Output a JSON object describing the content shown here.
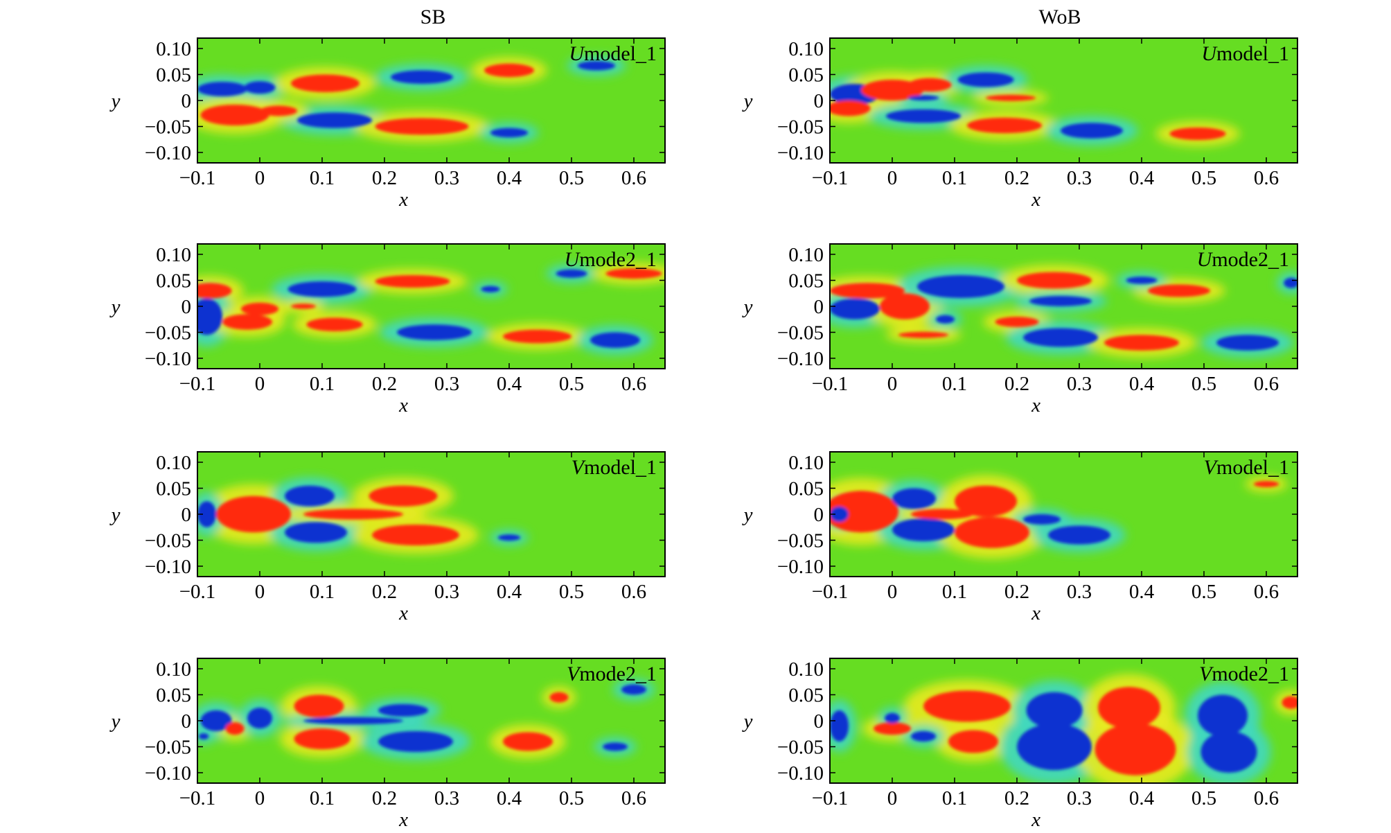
{
  "column_titles": [
    "SB",
    "WoB"
  ],
  "colors": {
    "background_field": "#66dd22",
    "positive": "#ff2a10",
    "negative": "#1030d0",
    "weak_positive": "#e8ea20",
    "weak_negative": "#40d8c0"
  },
  "chart_data": [
    {
      "type": "heatmap",
      "column": "SB",
      "row": 1,
      "label_symbol": "U",
      "label_rest": "model_1",
      "xlabel": "x",
      "ylabel": "y",
      "xlim": [
        -0.1,
        0.65
      ],
      "ylim": [
        -0.12,
        0.12
      ],
      "xticks": [
        -0.1,
        0,
        0.1,
        0.2,
        0.3,
        0.4,
        0.5,
        0.6
      ],
      "xtick_labels": [
        "−0.1",
        "0",
        "0.1",
        "0.2",
        "0.3",
        "0.4",
        "0.5",
        "0.6"
      ],
      "yticks": [
        0.1,
        0.05,
        0,
        -0.05,
        -0.1
      ],
      "ytick_labels": [
        "0.10",
        "0.05",
        "0",
        "−0.05",
        "−0.10"
      ],
      "structures": [
        {
          "sign": "neg",
          "x": -0.06,
          "y": 0.022,
          "rx": 0.04,
          "ry": 0.014
        },
        {
          "sign": "neg",
          "x": 0.0,
          "y": 0.025,
          "rx": 0.025,
          "ry": 0.012
        },
        {
          "sign": "pos",
          "x": 0.105,
          "y": 0.033,
          "rx": 0.055,
          "ry": 0.017
        },
        {
          "sign": "neg",
          "x": 0.26,
          "y": 0.045,
          "rx": 0.05,
          "ry": 0.013
        },
        {
          "sign": "pos",
          "x": 0.4,
          "y": 0.058,
          "rx": 0.04,
          "ry": 0.013
        },
        {
          "sign": "neg",
          "x": 0.54,
          "y": 0.067,
          "rx": 0.03,
          "ry": 0.009
        },
        {
          "sign": "pos",
          "x": -0.04,
          "y": -0.028,
          "rx": 0.055,
          "ry": 0.02
        },
        {
          "sign": "neg",
          "x": 0.12,
          "y": -0.038,
          "rx": 0.06,
          "ry": 0.015
        },
        {
          "sign": "pos",
          "x": 0.26,
          "y": -0.05,
          "rx": 0.075,
          "ry": 0.016
        },
        {
          "sign": "neg",
          "x": 0.4,
          "y": -0.062,
          "rx": 0.03,
          "ry": 0.009
        },
        {
          "sign": "pos",
          "x": 0.03,
          "y": -0.02,
          "rx": 0.03,
          "ry": 0.01
        }
      ]
    },
    {
      "type": "heatmap",
      "column": "WoB",
      "row": 1,
      "label_symbol": "U",
      "label_rest": "model_1",
      "xlabel": "x",
      "ylabel": "y",
      "xlim": [
        -0.1,
        0.65
      ],
      "ylim": [
        -0.12,
        0.12
      ],
      "xticks": [
        -0.1,
        0,
        0.1,
        0.2,
        0.3,
        0.4,
        0.5,
        0.6
      ],
      "xtick_labels": [
        "−0.1",
        "0",
        "0.1",
        "0.2",
        "0.3",
        "0.4",
        "0.5",
        "0.6"
      ],
      "yticks": [
        0.1,
        0.05,
        0,
        -0.05,
        -0.1
      ],
      "ytick_labels": [
        "0.10",
        "0.05",
        "0",
        "−0.05",
        "−0.10"
      ],
      "structures": [
        {
          "sign": "neg",
          "x": -0.06,
          "y": 0.012,
          "rx": 0.04,
          "ry": 0.02
        },
        {
          "sign": "pos",
          "x": 0.0,
          "y": 0.02,
          "rx": 0.05,
          "ry": 0.02
        },
        {
          "sign": "pos",
          "x": 0.06,
          "y": 0.03,
          "rx": 0.035,
          "ry": 0.013
        },
        {
          "sign": "neg",
          "x": 0.15,
          "y": 0.04,
          "rx": 0.045,
          "ry": 0.014
        },
        {
          "sign": "pos",
          "x": 0.19,
          "y": 0.005,
          "rx": 0.04,
          "ry": 0.006
        },
        {
          "sign": "pos",
          "x": -0.07,
          "y": -0.015,
          "rx": 0.035,
          "ry": 0.015
        },
        {
          "sign": "neg",
          "x": 0.05,
          "y": -0.03,
          "rx": 0.06,
          "ry": 0.013
        },
        {
          "sign": "pos",
          "x": 0.18,
          "y": -0.048,
          "rx": 0.06,
          "ry": 0.015
        },
        {
          "sign": "neg",
          "x": 0.32,
          "y": -0.058,
          "rx": 0.05,
          "ry": 0.015
        },
        {
          "sign": "pos",
          "x": 0.49,
          "y": -0.064,
          "rx": 0.045,
          "ry": 0.012
        },
        {
          "sign": "neg",
          "x": 0.05,
          "y": 0.005,
          "rx": 0.025,
          "ry": 0.005
        }
      ]
    },
    {
      "type": "heatmap",
      "column": "SB",
      "row": 2,
      "label_symbol": "U",
      "label_rest": "mode2_1",
      "xlabel": "x",
      "ylabel": "y",
      "xlim": [
        -0.1,
        0.65
      ],
      "ylim": [
        -0.12,
        0.12
      ],
      "xticks": [
        -0.1,
        0,
        0.1,
        0.2,
        0.3,
        0.4,
        0.5,
        0.6
      ],
      "xtick_labels": [
        "−0.1",
        "0",
        "0.1",
        "0.2",
        "0.3",
        "0.4",
        "0.5",
        "0.6"
      ],
      "yticks": [
        0.1,
        0.05,
        0,
        -0.05,
        -0.1
      ],
      "ytick_labels": [
        "0.10",
        "0.05",
        "0",
        "−0.05",
        "−0.10"
      ],
      "structures": [
        {
          "sign": "pos",
          "x": -0.08,
          "y": 0.03,
          "rx": 0.035,
          "ry": 0.015
        },
        {
          "sign": "neg",
          "x": 0.1,
          "y": 0.033,
          "rx": 0.055,
          "ry": 0.015
        },
        {
          "sign": "pos",
          "x": 0.245,
          "y": 0.048,
          "rx": 0.06,
          "ry": 0.012
        },
        {
          "sign": "neg",
          "x": 0.37,
          "y": 0.033,
          "rx": 0.015,
          "ry": 0.006
        },
        {
          "sign": "neg",
          "x": 0.5,
          "y": 0.063,
          "rx": 0.025,
          "ry": 0.008
        },
        {
          "sign": "pos",
          "x": 0.6,
          "y": 0.063,
          "rx": 0.045,
          "ry": 0.01
        },
        {
          "sign": "neg",
          "x": -0.085,
          "y": -0.02,
          "rx": 0.025,
          "ry": 0.035
        },
        {
          "sign": "pos",
          "x": -0.02,
          "y": -0.03,
          "rx": 0.04,
          "ry": 0.015
        },
        {
          "sign": "pos",
          "x": 0.0,
          "y": -0.005,
          "rx": 0.03,
          "ry": 0.012
        },
        {
          "sign": "pos",
          "x": 0.12,
          "y": -0.035,
          "rx": 0.045,
          "ry": 0.013
        },
        {
          "sign": "neg",
          "x": 0.28,
          "y": -0.05,
          "rx": 0.06,
          "ry": 0.015
        },
        {
          "sign": "pos",
          "x": 0.445,
          "y": -0.058,
          "rx": 0.055,
          "ry": 0.013
        },
        {
          "sign": "neg",
          "x": 0.57,
          "y": -0.065,
          "rx": 0.04,
          "ry": 0.015
        },
        {
          "sign": "pos",
          "x": 0.07,
          "y": 0.0,
          "rx": 0.02,
          "ry": 0.005
        }
      ]
    },
    {
      "type": "heatmap",
      "column": "WoB",
      "row": 2,
      "label_symbol": "U",
      "label_rest": "mode2_1",
      "xlabel": "x",
      "ylabel": "y",
      "xlim": [
        -0.1,
        0.65
      ],
      "ylim": [
        -0.12,
        0.12
      ],
      "xticks": [
        -0.1,
        0,
        0.1,
        0.2,
        0.3,
        0.4,
        0.5,
        0.6
      ],
      "xtick_labels": [
        "−0.1",
        "0",
        "0.1",
        "0.2",
        "0.3",
        "0.4",
        "0.5",
        "0.6"
      ],
      "yticks": [
        0.1,
        0.05,
        0,
        -0.05,
        -0.1
      ],
      "ytick_labels": [
        "0.10",
        "0.05",
        "0",
        "−0.05",
        "−0.10"
      ],
      "structures": [
        {
          "sign": "pos",
          "x": -0.04,
          "y": 0.03,
          "rx": 0.06,
          "ry": 0.015
        },
        {
          "sign": "neg",
          "x": -0.06,
          "y": -0.005,
          "rx": 0.04,
          "ry": 0.02
        },
        {
          "sign": "pos",
          "x": 0.02,
          "y": 0.0,
          "rx": 0.04,
          "ry": 0.025
        },
        {
          "sign": "neg",
          "x": 0.11,
          "y": 0.038,
          "rx": 0.07,
          "ry": 0.022
        },
        {
          "sign": "pos",
          "x": 0.26,
          "y": 0.05,
          "rx": 0.06,
          "ry": 0.016
        },
        {
          "sign": "neg",
          "x": 0.27,
          "y": 0.01,
          "rx": 0.05,
          "ry": 0.01
        },
        {
          "sign": "pos",
          "x": 0.46,
          "y": 0.03,
          "rx": 0.05,
          "ry": 0.012
        },
        {
          "sign": "neg",
          "x": 0.4,
          "y": 0.05,
          "rx": 0.025,
          "ry": 0.007
        },
        {
          "sign": "pos",
          "x": 0.2,
          "y": -0.03,
          "rx": 0.035,
          "ry": 0.01
        },
        {
          "sign": "neg",
          "x": 0.085,
          "y": -0.025,
          "rx": 0.015,
          "ry": 0.008
        },
        {
          "sign": "neg",
          "x": 0.27,
          "y": -0.06,
          "rx": 0.06,
          "ry": 0.018
        },
        {
          "sign": "pos",
          "x": 0.4,
          "y": -0.07,
          "rx": 0.06,
          "ry": 0.015
        },
        {
          "sign": "neg",
          "x": 0.57,
          "y": -0.07,
          "rx": 0.05,
          "ry": 0.015
        },
        {
          "sign": "pos",
          "x": 0.05,
          "y": -0.055,
          "rx": 0.04,
          "ry": 0.006
        },
        {
          "sign": "neg",
          "x": 0.64,
          "y": 0.045,
          "rx": 0.012,
          "ry": 0.01
        }
      ]
    },
    {
      "type": "heatmap",
      "column": "SB",
      "row": 3,
      "label_symbol": "V",
      "label_rest": "model_1",
      "xlabel": "x",
      "ylabel": "y",
      "xlim": [
        -0.1,
        0.65
      ],
      "ylim": [
        -0.12,
        0.12
      ],
      "xticks": [
        -0.1,
        0,
        0.1,
        0.2,
        0.3,
        0.4,
        0.5,
        0.6
      ],
      "xtick_labels": [
        "−0.1",
        "0",
        "0.1",
        "0.2",
        "0.3",
        "0.4",
        "0.5",
        "0.6"
      ],
      "yticks": [
        0.1,
        0.05,
        0,
        -0.05,
        -0.1
      ],
      "ytick_labels": [
        "0.10",
        "0.05",
        "0",
        "−0.05",
        "−0.10"
      ],
      "structures": [
        {
          "sign": "pos",
          "x": -0.01,
          "y": 0.0,
          "rx": 0.06,
          "ry": 0.035
        },
        {
          "sign": "neg",
          "x": -0.085,
          "y": 0.0,
          "rx": 0.015,
          "ry": 0.025
        },
        {
          "sign": "neg",
          "x": 0.08,
          "y": 0.035,
          "rx": 0.04,
          "ry": 0.02
        },
        {
          "sign": "neg",
          "x": 0.09,
          "y": -0.035,
          "rx": 0.05,
          "ry": 0.02
        },
        {
          "sign": "pos",
          "x": 0.23,
          "y": 0.035,
          "rx": 0.055,
          "ry": 0.02
        },
        {
          "sign": "pos",
          "x": 0.25,
          "y": -0.04,
          "rx": 0.07,
          "ry": 0.02
        },
        {
          "sign": "pos",
          "x": 0.15,
          "y": 0.0,
          "rx": 0.08,
          "ry": 0.01
        },
        {
          "sign": "neg",
          "x": 0.4,
          "y": -0.045,
          "rx": 0.018,
          "ry": 0.006
        }
      ]
    },
    {
      "type": "heatmap",
      "column": "WoB",
      "row": 3,
      "label_symbol": "V",
      "label_rest": "model_1",
      "xlabel": "x",
      "ylabel": "y",
      "xlim": [
        -0.1,
        0.65
      ],
      "ylim": [
        -0.12,
        0.12
      ],
      "xticks": [
        -0.1,
        0,
        0.1,
        0.2,
        0.3,
        0.4,
        0.5,
        0.6
      ],
      "xtick_labels": [
        "−0.1",
        "0",
        "0.1",
        "0.2",
        "0.3",
        "0.4",
        "0.5",
        "0.6"
      ],
      "yticks": [
        0.1,
        0.05,
        0,
        -0.05,
        -0.1
      ],
      "ytick_labels": [
        "0.10",
        "0.05",
        "0",
        "−0.05",
        "−0.10"
      ],
      "structures": [
        {
          "sign": "pos",
          "x": -0.05,
          "y": 0.005,
          "rx": 0.06,
          "ry": 0.04
        },
        {
          "sign": "neg",
          "x": -0.085,
          "y": 0.0,
          "rx": 0.015,
          "ry": 0.015
        },
        {
          "sign": "neg",
          "x": 0.035,
          "y": 0.03,
          "rx": 0.035,
          "ry": 0.02
        },
        {
          "sign": "neg",
          "x": 0.05,
          "y": -0.03,
          "rx": 0.05,
          "ry": 0.022
        },
        {
          "sign": "pos",
          "x": 0.15,
          "y": 0.025,
          "rx": 0.05,
          "ry": 0.03
        },
        {
          "sign": "pos",
          "x": 0.16,
          "y": -0.035,
          "rx": 0.06,
          "ry": 0.03
        },
        {
          "sign": "pos",
          "x": 0.08,
          "y": 0.0,
          "rx": 0.05,
          "ry": 0.01
        },
        {
          "sign": "neg",
          "x": 0.3,
          "y": -0.04,
          "rx": 0.05,
          "ry": 0.018
        },
        {
          "sign": "neg",
          "x": 0.24,
          "y": -0.01,
          "rx": 0.03,
          "ry": 0.01
        },
        {
          "sign": "pos",
          "x": 0.6,
          "y": 0.058,
          "rx": 0.02,
          "ry": 0.006
        }
      ]
    },
    {
      "type": "heatmap",
      "column": "SB",
      "row": 4,
      "label_symbol": "V",
      "label_rest": "mode2_1",
      "xlabel": "x",
      "ylabel": "y",
      "xlim": [
        -0.1,
        0.65
      ],
      "ylim": [
        -0.12,
        0.12
      ],
      "xticks": [
        -0.1,
        0,
        0.1,
        0.2,
        0.3,
        0.4,
        0.5,
        0.6
      ],
      "xtick_labels": [
        "−0.1",
        "0",
        "0.1",
        "0.2",
        "0.3",
        "0.4",
        "0.5",
        "0.6"
      ],
      "yticks": [
        0.1,
        0.05,
        0,
        -0.05,
        -0.1
      ],
      "ytick_labels": [
        "0.10",
        "0.05",
        "0",
        "−0.05",
        "−0.10"
      ],
      "structures": [
        {
          "sign": "neg",
          "x": -0.07,
          "y": 0.0,
          "rx": 0.025,
          "ry": 0.02
        },
        {
          "sign": "pos",
          "x": -0.04,
          "y": -0.015,
          "rx": 0.015,
          "ry": 0.012
        },
        {
          "sign": "neg",
          "x": 0.0,
          "y": 0.005,
          "rx": 0.02,
          "ry": 0.02
        },
        {
          "sign": "pos",
          "x": 0.095,
          "y": 0.028,
          "rx": 0.04,
          "ry": 0.022
        },
        {
          "sign": "pos",
          "x": 0.1,
          "y": -0.035,
          "rx": 0.045,
          "ry": 0.02
        },
        {
          "sign": "neg",
          "x": 0.15,
          "y": 0.0,
          "rx": 0.08,
          "ry": 0.007
        },
        {
          "sign": "neg",
          "x": 0.23,
          "y": 0.02,
          "rx": 0.04,
          "ry": 0.012
        },
        {
          "sign": "neg",
          "x": 0.25,
          "y": -0.04,
          "rx": 0.06,
          "ry": 0.02
        },
        {
          "sign": "pos",
          "x": 0.43,
          "y": -0.04,
          "rx": 0.04,
          "ry": 0.018
        },
        {
          "sign": "pos",
          "x": 0.48,
          "y": 0.045,
          "rx": 0.015,
          "ry": 0.01
        },
        {
          "sign": "neg",
          "x": 0.57,
          "y": -0.05,
          "rx": 0.02,
          "ry": 0.008
        },
        {
          "sign": "neg",
          "x": 0.6,
          "y": 0.06,
          "rx": 0.02,
          "ry": 0.01
        },
        {
          "sign": "neg",
          "x": -0.09,
          "y": -0.03,
          "rx": 0.008,
          "ry": 0.006
        }
      ]
    },
    {
      "type": "heatmap",
      "column": "WoB",
      "row": 4,
      "label_symbol": "V",
      "label_rest": "mode2_1",
      "xlabel": "x",
      "ylabel": "y",
      "xlim": [
        -0.1,
        0.65
      ],
      "ylim": [
        -0.12,
        0.12
      ],
      "xticks": [
        -0.1,
        0,
        0.1,
        0.2,
        0.3,
        0.4,
        0.5,
        0.6
      ],
      "xtick_labels": [
        "−0.1",
        "0",
        "0.1",
        "0.2",
        "0.3",
        "0.4",
        "0.5",
        "0.6"
      ],
      "yticks": [
        0.1,
        0.05,
        0,
        -0.05,
        -0.1
      ],
      "ytick_labels": [
        "0.10",
        "0.05",
        "0",
        "−0.05",
        "−0.10"
      ],
      "structures": [
        {
          "sign": "neg",
          "x": -0.085,
          "y": -0.01,
          "rx": 0.015,
          "ry": 0.03
        },
        {
          "sign": "pos",
          "x": 0.0,
          "y": -0.015,
          "rx": 0.03,
          "ry": 0.012
        },
        {
          "sign": "neg",
          "x": 0.0,
          "y": 0.005,
          "rx": 0.012,
          "ry": 0.01
        },
        {
          "sign": "pos",
          "x": 0.12,
          "y": 0.028,
          "rx": 0.07,
          "ry": 0.03
        },
        {
          "sign": "pos",
          "x": 0.13,
          "y": -0.04,
          "rx": 0.04,
          "ry": 0.022
        },
        {
          "sign": "neg",
          "x": 0.05,
          "y": -0.03,
          "rx": 0.02,
          "ry": 0.01
        },
        {
          "sign": "neg",
          "x": 0.26,
          "y": 0.02,
          "rx": 0.045,
          "ry": 0.035
        },
        {
          "sign": "neg",
          "x": 0.26,
          "y": -0.05,
          "rx": 0.06,
          "ry": 0.045
        },
        {
          "sign": "pos",
          "x": 0.38,
          "y": 0.025,
          "rx": 0.05,
          "ry": 0.04
        },
        {
          "sign": "pos",
          "x": 0.39,
          "y": -0.055,
          "rx": 0.065,
          "ry": 0.05
        },
        {
          "sign": "neg",
          "x": 0.53,
          "y": 0.01,
          "rx": 0.04,
          "ry": 0.04
        },
        {
          "sign": "neg",
          "x": 0.54,
          "y": -0.06,
          "rx": 0.045,
          "ry": 0.04
        },
        {
          "sign": "pos",
          "x": 0.64,
          "y": 0.035,
          "rx": 0.015,
          "ry": 0.012
        }
      ]
    }
  ]
}
